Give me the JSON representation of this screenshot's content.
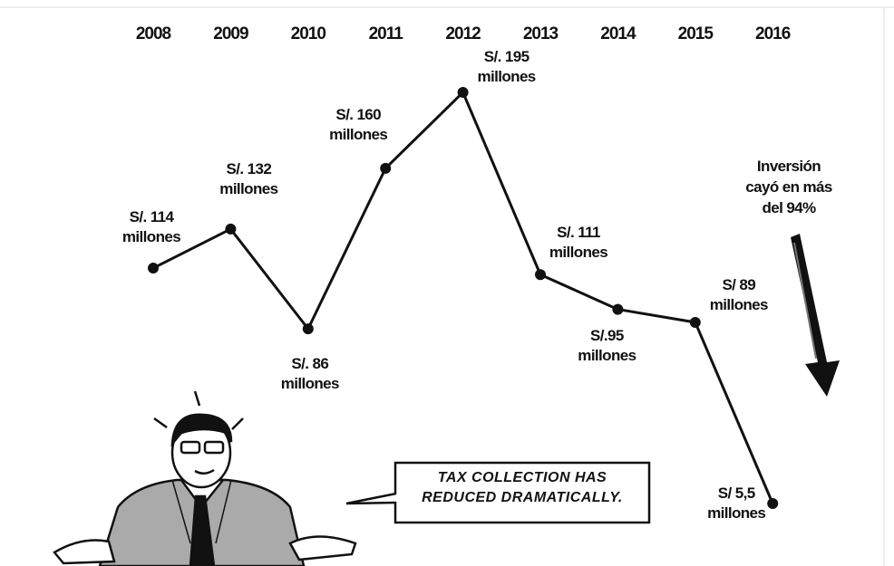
{
  "chart_data": {
    "type": "line",
    "categories": [
      "2008",
      "2009",
      "2010",
      "2011",
      "2012",
      "2013",
      "2014",
      "2015",
      "2016"
    ],
    "values": [
      114,
      132,
      86,
      160,
      195,
      111,
      95,
      89,
      5.5
    ],
    "value_labels": [
      "S/. 114 millones",
      "S/. 132 millones",
      "S/. 86 millones",
      "S/. 160 millones",
      "S/. 195 millones",
      "S/. 111 millones",
      "S/.95 millones",
      "S/ 89 millones",
      "S/ 5,5 millones"
    ],
    "color": "#111111",
    "annotation": "Inversión cayó en más del 94%",
    "speech": "TAX COLLECTION HAS REDUCED DRAMATICALLY."
  }
}
